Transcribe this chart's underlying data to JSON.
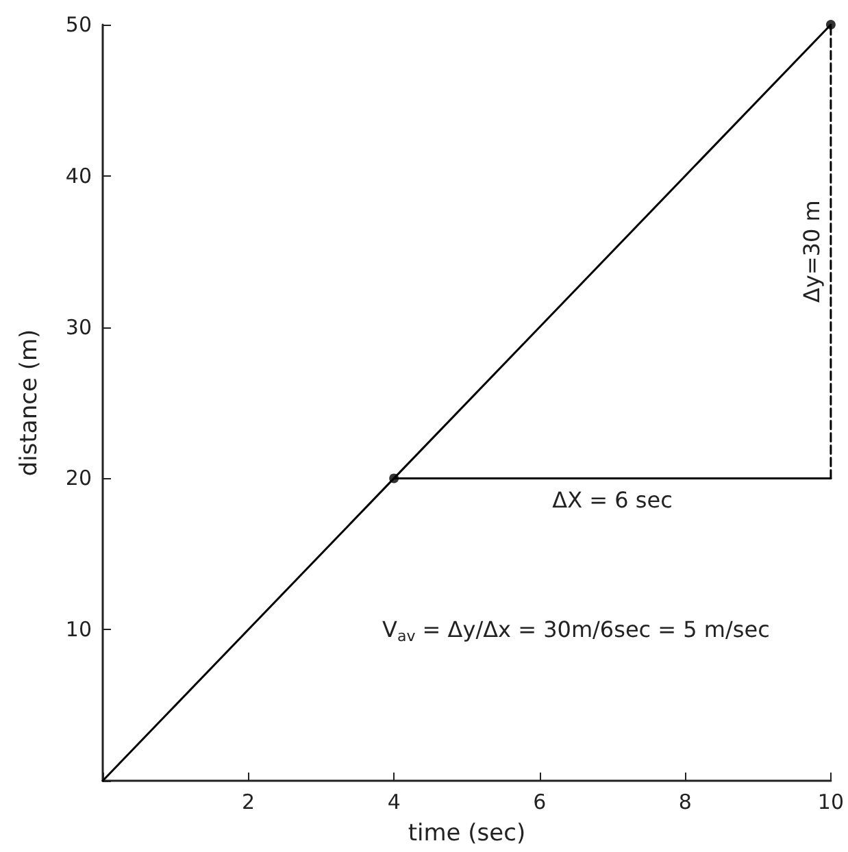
{
  "chart_data": {
    "type": "line",
    "xlabel": "time (sec)",
    "ylabel": "distance (m)",
    "xlim": [
      0,
      10
    ],
    "ylim": [
      0,
      50
    ],
    "xticks": [
      {
        "value": 0,
        "label": null
      },
      2,
      4,
      6,
      8,
      10
    ],
    "yticks": [
      {
        "value": 0,
        "label": null
      },
      10,
      20,
      30,
      40,
      50
    ],
    "series": [
      {
        "color": "#000000",
        "x": [
          0,
          4,
          10
        ],
        "values": [
          0,
          20,
          50
        ],
        "line_style": "solid"
      },
      {
        "type": "scatter",
        "color": "#000000",
        "x": [
          4,
          10
        ],
        "values": [
          20,
          50
        ],
        "marker": "circle"
      },
      {
        "color": "#000000",
        "x": [
          4,
          10
        ],
        "values": [
          20,
          20
        ],
        "line_style": "solid"
      },
      {
        "color": "#000000",
        "x": [
          10,
          10
        ],
        "values": [
          20,
          50
        ],
        "line_style": "dashed"
      }
    ],
    "annotations": [
      {
        "text": "ΔX = 6 sec",
        "x": 7,
        "y": 20
      },
      {
        "text": "Δy=30 m",
        "x": 10,
        "y": 35
      },
      "V$_{av}$ = Δy/Δx = 30m/6sec = 5 m/sec"
    ],
    "grid": false
  }
}
